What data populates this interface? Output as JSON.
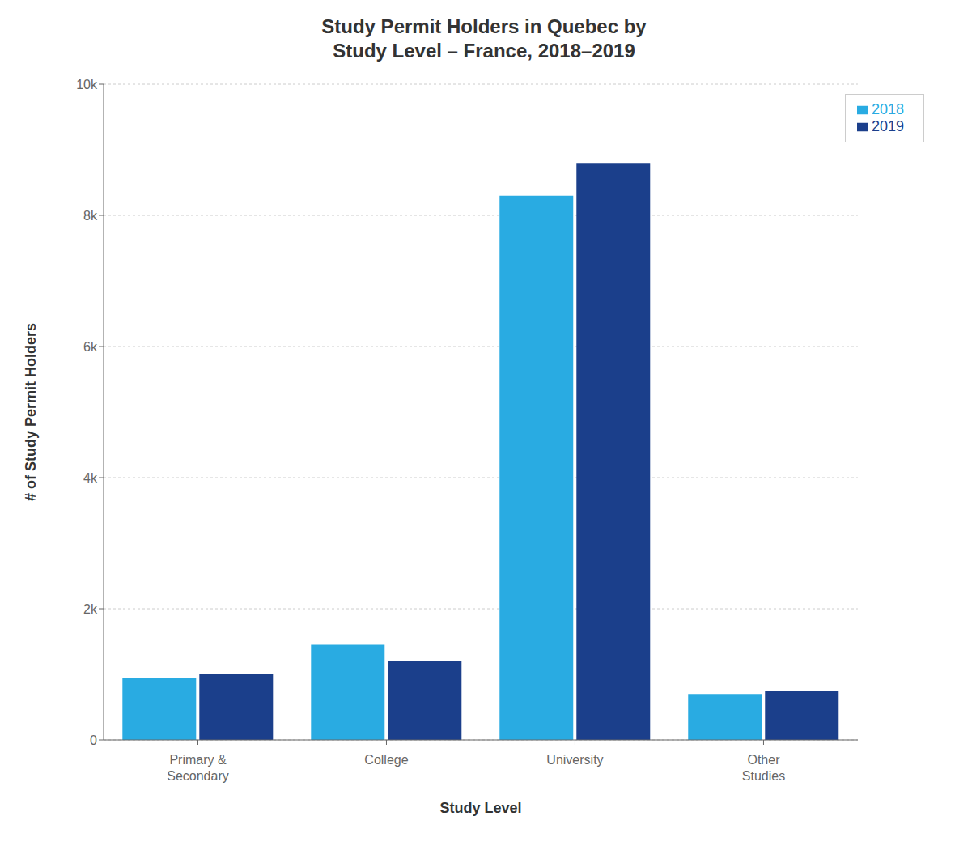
{
  "chart_data": {
    "type": "bar",
    "title": "Study Permit Holders in Quebec by\nStudy Level – France, 2018–2019",
    "xlabel": "Study Level",
    "ylabel": "# of Study Permit Holders",
    "categories": [
      "Primary &\nSecondary",
      "College",
      "University",
      "Other\nStudies"
    ],
    "series": [
      {
        "name": "2018",
        "color": "#29ABE2",
        "values": [
          950,
          1450,
          8300,
          700
        ]
      },
      {
        "name": "2019",
        "color": "#1B3F8B",
        "values": [
          1000,
          1200,
          8800,
          750
        ]
      }
    ],
    "ylim": [
      0,
      10000
    ],
    "yticks": [
      0,
      {
        "value": 2000,
        "label": "2k"
      },
      {
        "value": 4000,
        "label": "4k"
      },
      {
        "value": 6000,
        "label": "6k"
      },
      {
        "value": 8000,
        "label": "8k"
      },
      {
        "value": 10000,
        "label": "10k"
      }
    ],
    "grid": true,
    "legend": "upper right"
  }
}
